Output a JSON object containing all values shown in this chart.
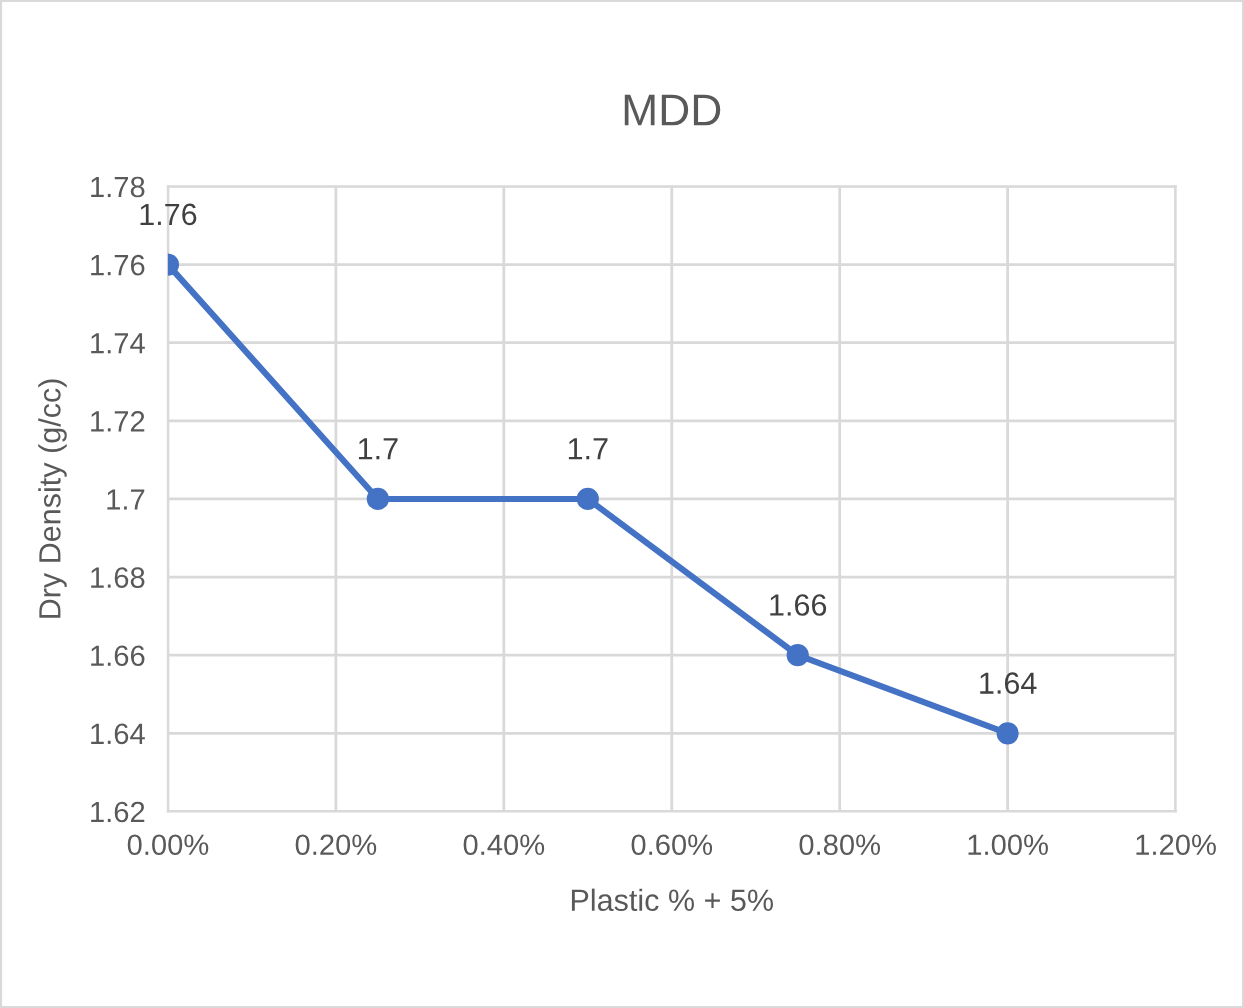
{
  "chart_data": {
    "type": "line",
    "title": "MDD",
    "xlabel": "Plastic % + 5%",
    "ylabel": "Dry Density (g/cc)",
    "x": [
      0,
      0.25,
      0.5,
      0.75,
      1.0
    ],
    "series": [
      {
        "color": "#4472c4",
        "values": [
          1.76,
          1.7,
          1.7,
          1.66,
          1.64
        ]
      }
    ],
    "xlim": [
      0,
      1.2
    ],
    "xticks": [
      {
        "value": 0,
        "label": "0.00%"
      },
      {
        "value": 0.2,
        "label": "0.20%"
      },
      {
        "value": 0.4,
        "label": "0.40%"
      },
      {
        "value": 0.6,
        "label": "0.60%"
      },
      {
        "value": 0.8,
        "label": "0.80%"
      },
      {
        "value": 1.0,
        "label": "1.00%"
      },
      {
        "value": 1.2,
        "label": "1.20%"
      }
    ],
    "ylim": [
      1.62,
      1.78
    ],
    "yticks": [
      1.62,
      1.64,
      1.66,
      1.68,
      1.7,
      1.72,
      1.74,
      1.76,
      1.78
    ],
    "grid": true,
    "data_labels": true,
    "marker": "circle",
    "line_style": "solid",
    "legend": false
  }
}
